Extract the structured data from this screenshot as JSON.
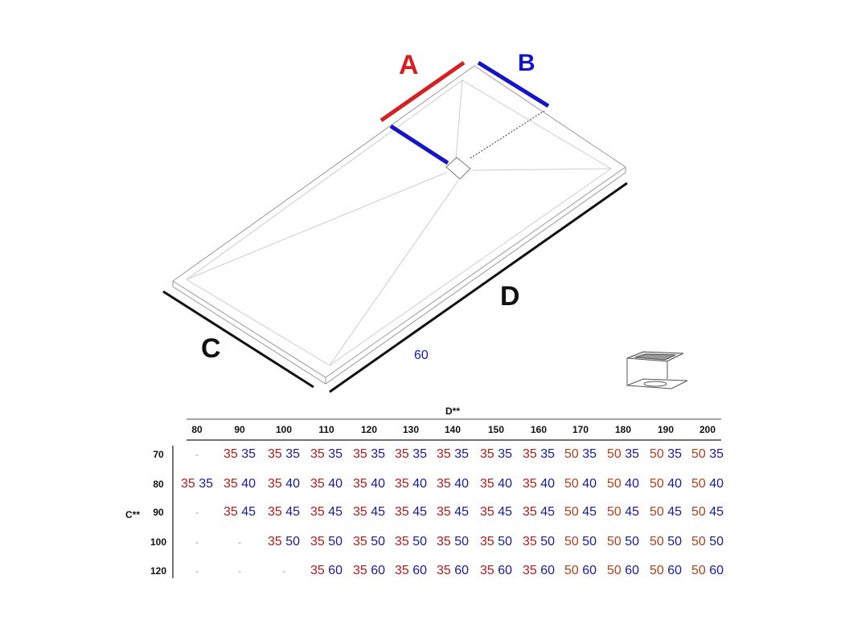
{
  "diagram": {
    "labels": {
      "A": "A",
      "B": "B",
      "C": "C",
      "D": "D",
      "drain_width": "60"
    },
    "colors": {
      "A": "#d42020",
      "B": "#1515c8",
      "outline": "#888888",
      "dimension": "#111111"
    },
    "icons": [
      "shower-tray-drawing",
      "drain-grate-icon"
    ]
  },
  "table": {
    "column_group_label": "D**",
    "row_group_label": "C**",
    "columns": [
      "80",
      "90",
      "100",
      "110",
      "120",
      "130",
      "140",
      "150",
      "160",
      "170",
      "180",
      "190",
      "200"
    ],
    "rows": [
      {
        "label": "70",
        "cells": [
          "-",
          "35 35",
          "35 35",
          "35 35",
          "35 35",
          "35 35",
          "35 35",
          "35 35",
          "35 35",
          "50 35",
          "50 35",
          "50 35",
          "50 35"
        ]
      },
      {
        "label": "80",
        "cells": [
          "35 35",
          "35 40",
          "35 40",
          "35 40",
          "35 40",
          "35 40",
          "35 40",
          "35 40",
          "35 40",
          "50 40",
          "50 40",
          "50 40",
          "50 40"
        ]
      },
      {
        "label": "90",
        "cells": [
          "-",
          "35 45",
          "35 45",
          "35 45",
          "35 45",
          "35 45",
          "35 45",
          "35 45",
          "35 45",
          "50 45",
          "50 45",
          "50 45",
          "50 45"
        ]
      },
      {
        "label": "100",
        "cells": [
          "-",
          "-",
          "35 50",
          "35 50",
          "35 50",
          "35 50",
          "35 50",
          "35 50",
          "35 50",
          "50 50",
          "50 50",
          "50 50",
          "50 50"
        ]
      },
      {
        "label": "120",
        "cells": [
          "-",
          "-",
          "-",
          "35 60",
          "35 60",
          "35 60",
          "35 60",
          "35 60",
          "35 60",
          "50 60",
          "50 60",
          "50 60",
          "50 60"
        ]
      }
    ],
    "colors": {
      "a_35": "#b01a1a",
      "a_50": "#b0401c",
      "b": "#1a1a96"
    }
  }
}
